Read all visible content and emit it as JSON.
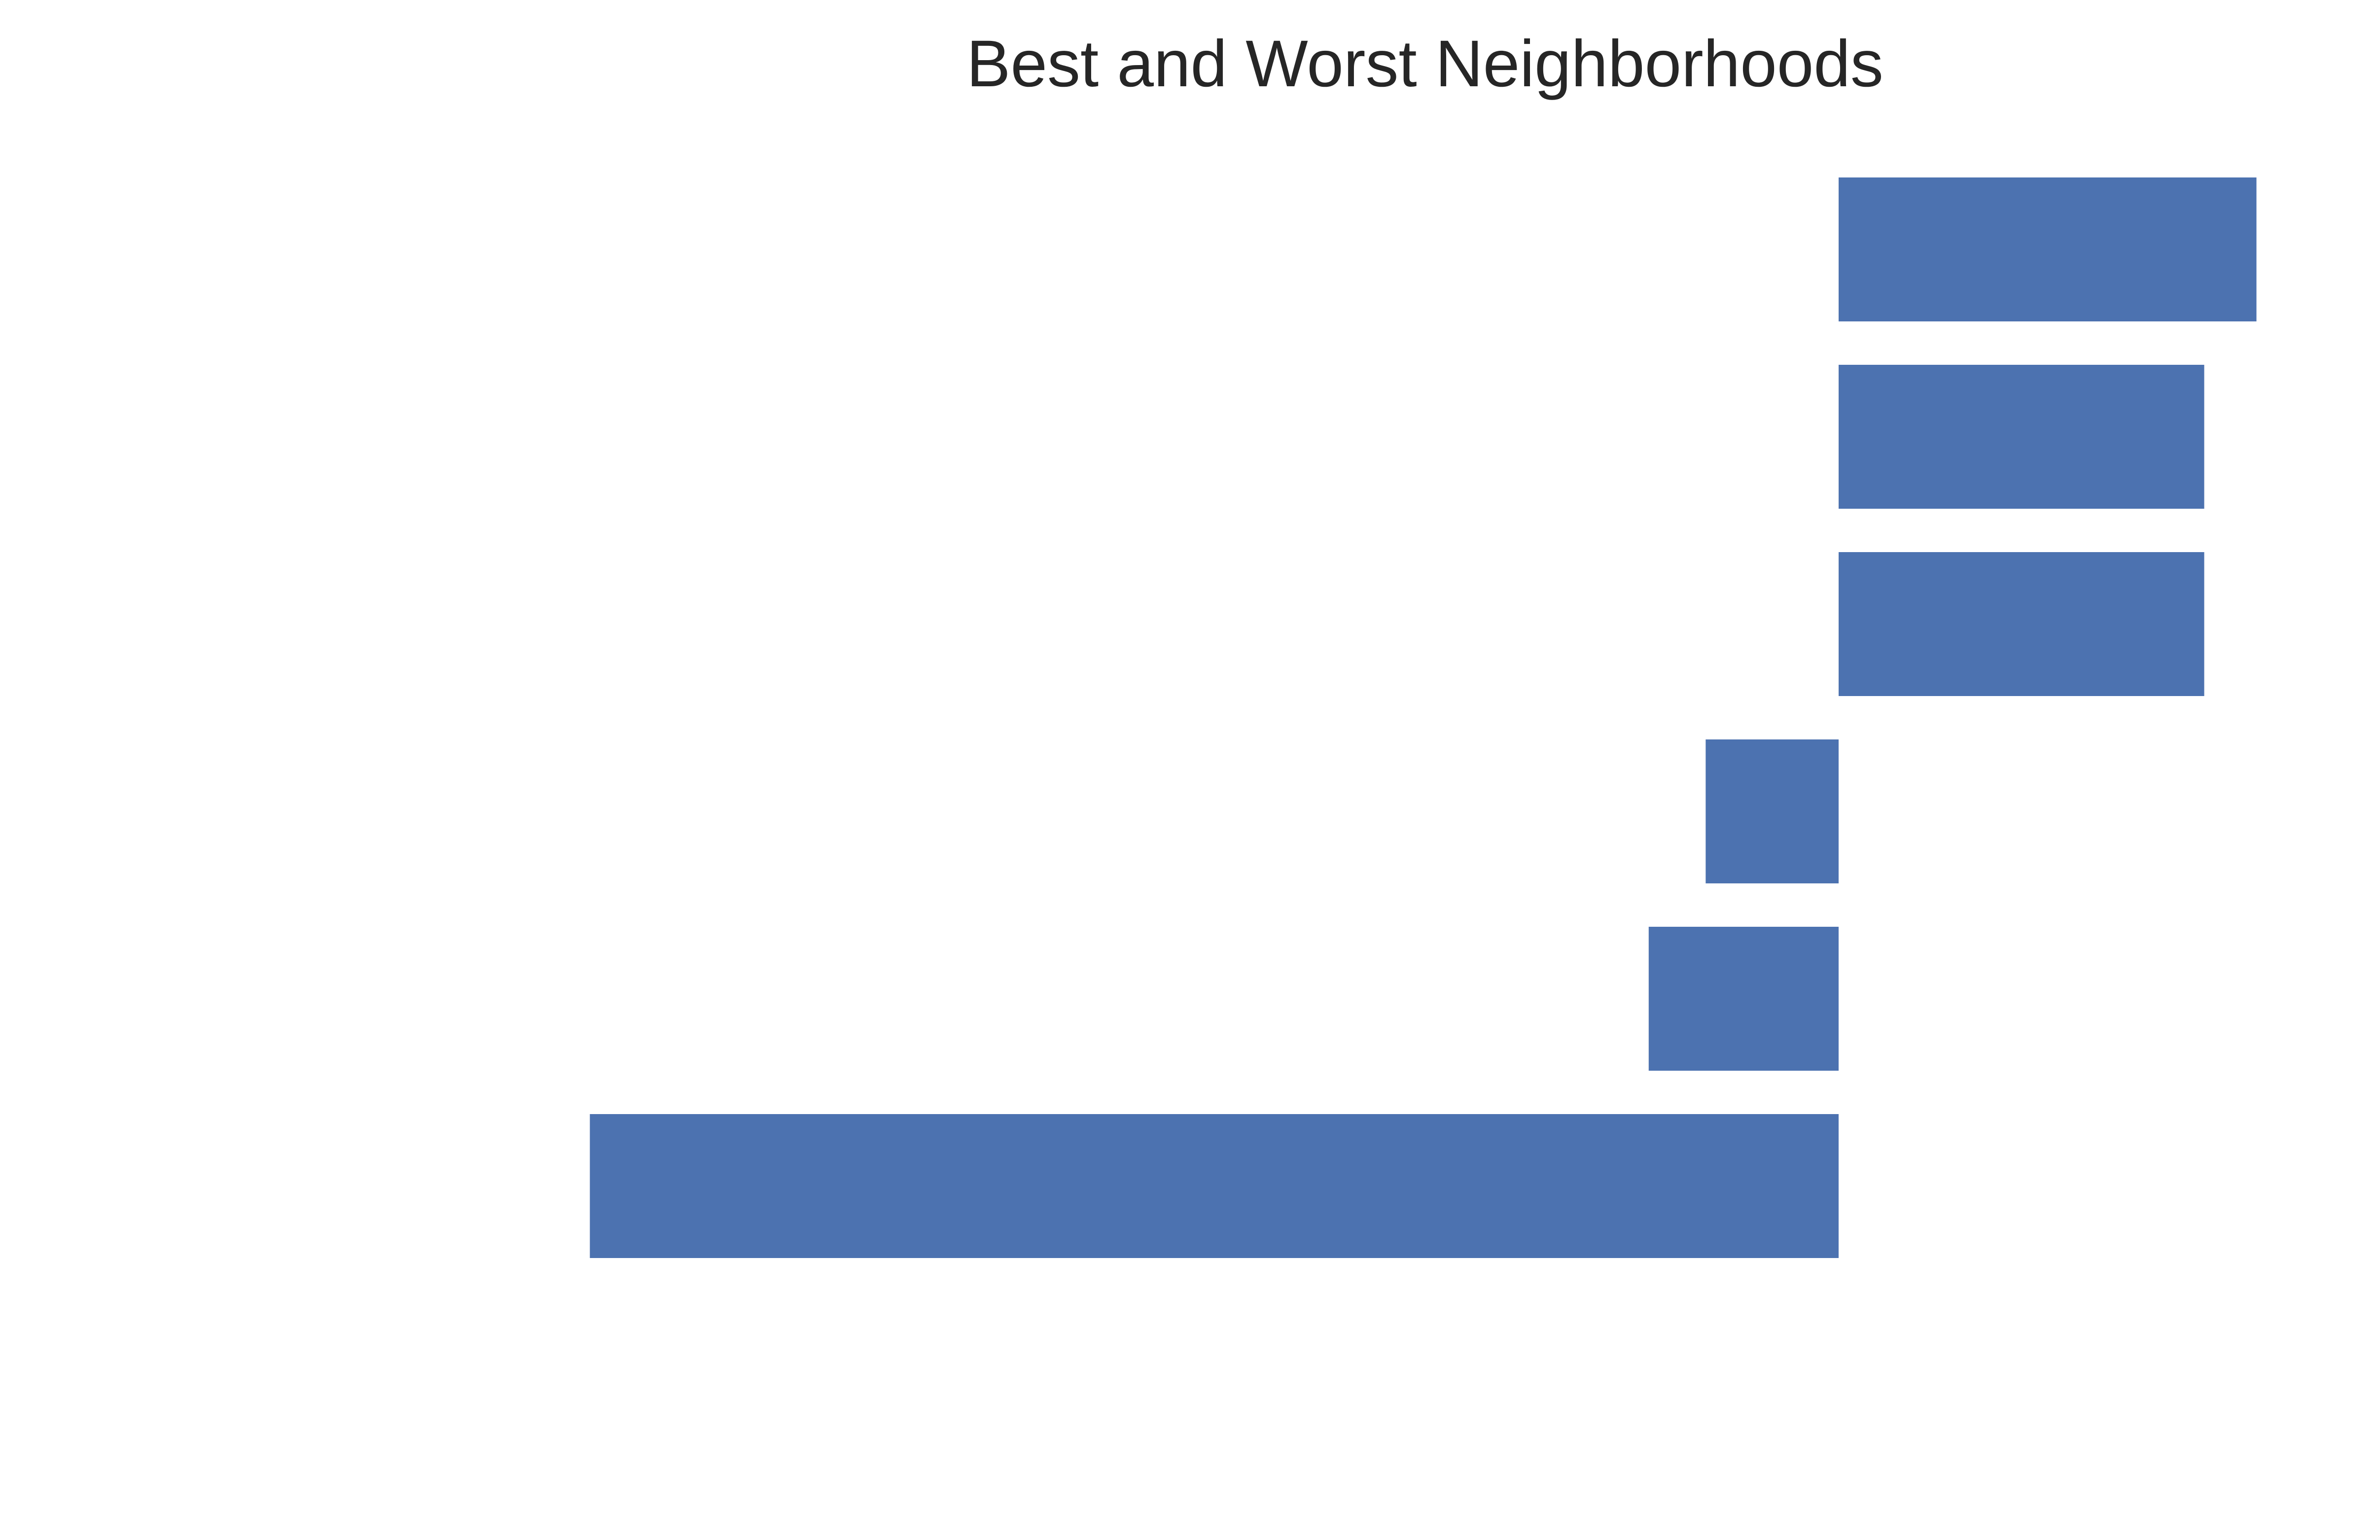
{
  "chart_data": {
    "type": "bar",
    "orientation": "horizontal",
    "title": "Best and Worst Neighborhoods",
    "xlabel": "",
    "ylabel": "",
    "categories": [
      "",
      "",
      "",
      "",
      "",
      ""
    ],
    "values": [
      0.88,
      0.77,
      0.77,
      -0.28,
      -0.4,
      -2.63
    ],
    "xlim": [
      -3.0,
      0.95
    ],
    "axes_visible": false,
    "grid": false,
    "legend": "none",
    "bar_color": "#4c72b0"
  }
}
